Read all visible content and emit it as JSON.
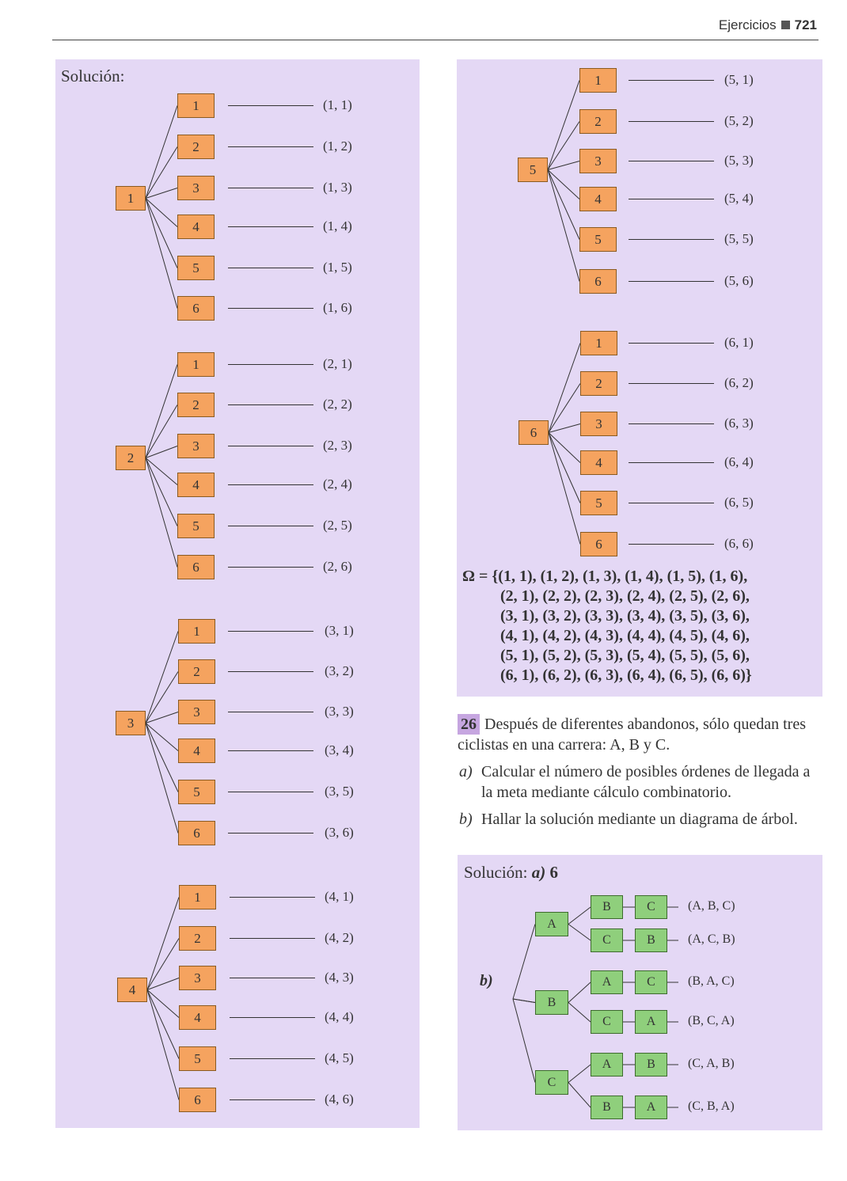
{
  "header": {
    "section": "Ejercicios",
    "page": "721"
  },
  "solution_label": "Solución:",
  "tree_groups": [
    {
      "root": "1",
      "branches": [
        "1",
        "2",
        "3",
        "4",
        "5",
        "6"
      ],
      "outcomes": [
        "(1, 1)",
        "(1, 2)",
        "(1, 3)",
        "(1, 4)",
        "(1, 5)",
        "(1, 6)"
      ]
    },
    {
      "root": "2",
      "branches": [
        "1",
        "2",
        "3",
        "4",
        "5",
        "6"
      ],
      "outcomes": [
        "(2, 1)",
        "(2, 2)",
        "(2, 3)",
        "(2, 4)",
        "(2, 5)",
        "(2, 6)"
      ]
    },
    {
      "root": "3",
      "branches": [
        "1",
        "2",
        "3",
        "4",
        "5",
        "6"
      ],
      "outcomes": [
        "(3, 1)",
        "(3, 2)",
        "(3, 3)",
        "(3, 4)",
        "(3, 5)",
        "(3, 6)"
      ]
    },
    {
      "root": "4",
      "branches": [
        "1",
        "2",
        "3",
        "4",
        "5",
        "6"
      ],
      "outcomes": [
        "(4, 1)",
        "(4, 2)",
        "(4, 3)",
        "(4, 4)",
        "(4, 5)",
        "(4, 6)"
      ]
    },
    {
      "root": "5",
      "branches": [
        "1",
        "2",
        "3",
        "4",
        "5",
        "6"
      ],
      "outcomes": [
        "(5, 1)",
        "(5, 2)",
        "(5, 3)",
        "(5, 4)",
        "(5, 5)",
        "(5, 6)"
      ]
    },
    {
      "root": "6",
      "branches": [
        "1",
        "2",
        "3",
        "4",
        "5",
        "6"
      ],
      "outcomes": [
        "(6, 1)",
        "(6, 2)",
        "(6, 3)",
        "(6, 4)",
        "(6, 5)",
        "(6, 6)"
      ]
    }
  ],
  "sample_space": {
    "lead": "Ω = {",
    "rows": [
      "(1, 1), (1, 2), (1, 3), (1, 4), (1, 5), (1, 6),",
      "(2, 1), (2, 2), (2, 3), (2, 4), (2, 5), (2, 6),",
      "(3, 1), (3, 2), (3, 3), (3, 4), (3, 5), (3, 6),",
      "(4, 1), (4, 2), (4, 3), (4, 4), (4, 5), (4, 6),",
      "(5, 1), (5, 2), (5, 3), (5, 4), (5, 5), (5, 6),",
      "(6, 1), (6, 2), (6, 3), (6, 4), (6, 5), (6, 6)"
    ],
    "close": "}"
  },
  "problem": {
    "number": "26",
    "statement": "Después de diferentes abandonos, sólo quedan tres ciclistas en una carrera: A, B y C.",
    "part_a_label": "a)",
    "part_a": "Calcular el número de posibles órdenes de llegada a la meta mediante cálculo combinatorio.",
    "part_b_label": "b)",
    "part_b": "Hallar la solución mediante un diagrama de árbol."
  },
  "solution26": {
    "label": "Solución:",
    "a_label": "a)",
    "a_value": "6",
    "b_label": "b)",
    "tree": [
      {
        "first": "A",
        "paths": [
          {
            "second": "B",
            "third": "C",
            "result": "(A, B, C)"
          },
          {
            "second": "C",
            "third": "B",
            "result": "(A, C, B)"
          }
        ]
      },
      {
        "first": "B",
        "paths": [
          {
            "second": "A",
            "third": "C",
            "result": "(B, A, C)"
          },
          {
            "second": "C",
            "third": "A",
            "result": "(B, C, A)"
          }
        ]
      },
      {
        "first": "C",
        "paths": [
          {
            "second": "A",
            "third": "B",
            "result": "(C, A, B)"
          },
          {
            "second": "B",
            "third": "A",
            "result": "(C, B, A)"
          }
        ]
      }
    ]
  },
  "colors": {
    "panel": "#e4d8f5",
    "orange_box": "#f5a35f",
    "green_box": "#8fcf7c",
    "number_badge": "#c6a6e0"
  }
}
